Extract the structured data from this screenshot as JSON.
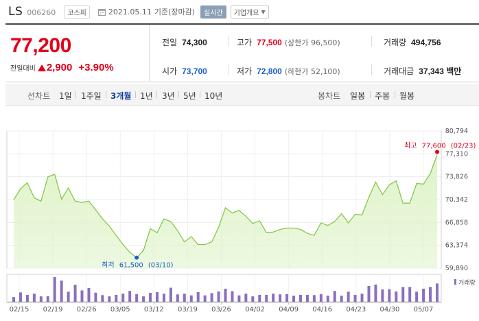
{
  "header": {
    "name": "LS",
    "code": "006260",
    "market": "코스피",
    "date": "2021.05.11",
    "date_suffix": "기준(장마감)",
    "realtime_label": "실시간",
    "company_label": "기업개요"
  },
  "quote": {
    "price": "77,200",
    "change_label": "전일대비",
    "change_amount": "2,900",
    "change_percent": "+3.90%",
    "prev_close_label": "전일",
    "prev_close": "74,300",
    "high_label": "고가",
    "high": "77,500",
    "upper_limit": "(상한가 96,500)",
    "volume_label": "거래량",
    "volume": "494,756",
    "open_label": "시가",
    "open": "73,700",
    "low_label": "저가",
    "low": "72,800",
    "lower_limit": "(하한가 52,100)",
    "amount_label": "거래대금",
    "amount": "37,343 백만"
  },
  "periods": {
    "label": "선차트",
    "items": [
      "1일",
      "1주일",
      "3개월",
      "1년",
      "3년",
      "5년",
      "10년"
    ],
    "active": "3개월",
    "candle_label": "봉차트",
    "candle_items": [
      "일봉",
      "주봉",
      "월봉"
    ]
  },
  "colors": {
    "up": "#e3001b",
    "down": "#1a5fc7",
    "line": "#84c94a",
    "fill": "#dff3c8",
    "volume": "#8a6fbf"
  },
  "chart_data": {
    "type": "area",
    "y_ticks": [
      "80,794",
      "77,310",
      "73,826",
      "70,342",
      "66,858",
      "63,374",
      "59,890"
    ],
    "ylim": [
      59890,
      80794
    ],
    "x_ticks": [
      "02/15",
      "02/19",
      "02/26",
      "03/05",
      "03/12",
      "03/19",
      "03/26",
      "04/02",
      "04/09",
      "04/16",
      "04/23",
      "04/30",
      "05/07"
    ],
    "max_annotation": {
      "label": "최고",
      "value": "77,600",
      "date": "(02/23)",
      "price": 77600
    },
    "min_annotation": {
      "label": "최저",
      "value": "61,500",
      "date": "(03/10)",
      "price": 61500
    },
    "volume_label": "거래량",
    "prices": [
      70300,
      72000,
      72900,
      70600,
      70100,
      73800,
      74200,
      70400,
      72100,
      70100,
      69900,
      70100,
      68800,
      67400,
      66300,
      64900,
      63500,
      62300,
      61500,
      62600,
      65900,
      65300,
      67400,
      67000,
      65600,
      63900,
      64700,
      63500,
      63500,
      63900,
      66100,
      69100,
      68300,
      68700,
      67800,
      66700,
      67100,
      65300,
      65400,
      65800,
      66000,
      66000,
      65800,
      65200,
      64900,
      66800,
      66400,
      67000,
      68200,
      66800,
      68100,
      68000,
      70700,
      73000,
      71100,
      72600,
      73200,
      69800,
      69800,
      72800,
      72700,
      74300,
      77200
    ],
    "volumes": [
      0.19,
      0.38,
      0.28,
      0.33,
      0.22,
      0.23,
      1.0,
      0.86,
      0.41,
      0.69,
      0.46,
      0.56,
      0.37,
      0.27,
      0.22,
      0.28,
      0.33,
      0.44,
      0.31,
      0.22,
      0.36,
      0.39,
      0.33,
      0.57,
      0.3,
      0.33,
      0.26,
      0.39,
      0.26,
      0.35,
      0.42,
      0.53,
      0.43,
      0.26,
      0.33,
      0.22,
      0.28,
      0.28,
      0.33,
      0.3,
      0.31,
      0.25,
      0.28,
      0.28,
      0.27,
      0.31,
      0.25,
      0.44,
      0.25,
      0.41,
      0.28,
      0.33,
      0.64,
      0.7,
      0.5,
      0.51,
      0.42,
      0.6,
      0.6,
      0.41,
      0.53,
      0.6,
      0.74
    ]
  }
}
